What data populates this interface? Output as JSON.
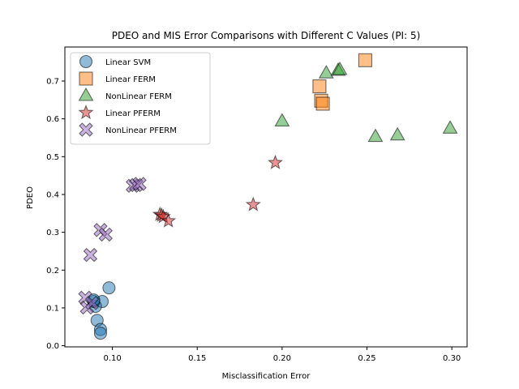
{
  "chart_data": {
    "type": "scatter",
    "title": "PDEO and MIS Error Comparisons with Different C Values (PI: 5)",
    "xlabel": "Misclassification Error",
    "ylabel": "PDEO",
    "xlim": [
      0.072,
      0.309
    ],
    "ylim": [
      -0.003,
      0.79
    ],
    "xticks": [
      0.1,
      0.15,
      0.2,
      0.25,
      0.3
    ],
    "xtick_labels": [
      "0.10",
      "0.15",
      "0.20",
      "0.25",
      "0.30"
    ],
    "yticks": [
      0.0,
      0.1,
      0.2,
      0.3,
      0.4,
      0.5,
      0.6,
      0.7
    ],
    "ytick_labels": [
      "0.0",
      "0.1",
      "0.2",
      "0.3",
      "0.4",
      "0.5",
      "0.6",
      "0.7"
    ],
    "grid": false,
    "legend_position": "top-left",
    "series": [
      {
        "name": "Linear SVM",
        "marker": "circle",
        "color": "#1f77b4",
        "points": [
          {
            "x": 0.098,
            "y": 0.153
          },
          {
            "x": 0.094,
            "y": 0.117
          },
          {
            "x": 0.09,
            "y": 0.104
          },
          {
            "x": 0.089,
            "y": 0.117
          },
          {
            "x": 0.089,
            "y": 0.121
          },
          {
            "x": 0.091,
            "y": 0.067
          },
          {
            "x": 0.093,
            "y": 0.043
          },
          {
            "x": 0.093,
            "y": 0.033
          }
        ]
      },
      {
        "name": "Linear FERM",
        "marker": "square",
        "color": "#ff7f0e",
        "points": [
          {
            "x": 0.222,
            "y": 0.686
          },
          {
            "x": 0.223,
            "y": 0.648
          },
          {
            "x": 0.224,
            "y": 0.64
          },
          {
            "x": 0.249,
            "y": 0.755
          }
        ]
      },
      {
        "name": "NonLinear FERM",
        "marker": "triangle",
        "color": "#2ca02c",
        "points": [
          {
            "x": 0.226,
            "y": 0.721
          },
          {
            "x": 0.233,
            "y": 0.728
          },
          {
            "x": 0.234,
            "y": 0.73
          },
          {
            "x": 0.2,
            "y": 0.594
          },
          {
            "x": 0.255,
            "y": 0.553
          },
          {
            "x": 0.268,
            "y": 0.557
          },
          {
            "x": 0.299,
            "y": 0.575
          }
        ]
      },
      {
        "name": "Linear PFERM",
        "marker": "star",
        "color": "#d62728",
        "points": [
          {
            "x": 0.196,
            "y": 0.484
          },
          {
            "x": 0.183,
            "y": 0.373
          },
          {
            "x": 0.128,
            "y": 0.347
          },
          {
            "x": 0.129,
            "y": 0.345
          },
          {
            "x": 0.13,
            "y": 0.341
          },
          {
            "x": 0.133,
            "y": 0.33
          }
        ]
      },
      {
        "name": "NonLinear PFERM",
        "marker": "x",
        "color": "#9467bd",
        "points": [
          {
            "x": 0.112,
            "y": 0.423
          },
          {
            "x": 0.114,
            "y": 0.425
          },
          {
            "x": 0.116,
            "y": 0.428
          },
          {
            "x": 0.093,
            "y": 0.306
          },
          {
            "x": 0.096,
            "y": 0.294
          },
          {
            "x": 0.087,
            "y": 0.24
          },
          {
            "x": 0.084,
            "y": 0.127
          },
          {
            "x": 0.085,
            "y": 0.101
          },
          {
            "x": 0.088,
            "y": 0.113
          }
        ]
      }
    ]
  }
}
